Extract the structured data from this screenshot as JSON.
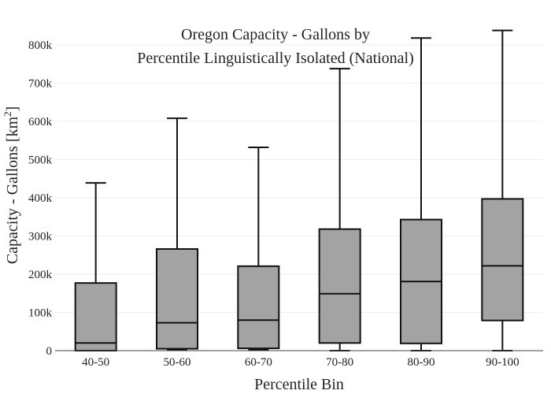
{
  "chart_data": {
    "type": "box",
    "title_lines": [
      "Oregon Capacity - Gallons by",
      "Percentile Linguistically Isolated (National)"
    ],
    "xlabel": "Percentile Bin",
    "ylabel": "Capacity - Gallons",
    "ylabel_unit_base": " [km",
    "ylabel_unit_sup": "2",
    "ylabel_unit_end": "]",
    "ylim": [
      0,
      850000
    ],
    "yticks": [
      {
        "value": 0,
        "label": "0"
      },
      {
        "value": 100000,
        "label": "100k"
      },
      {
        "value": 200000,
        "label": "200k"
      },
      {
        "value": 300000,
        "label": "300k"
      },
      {
        "value": 400000,
        "label": "400k"
      },
      {
        "value": 500000,
        "label": "500k"
      },
      {
        "value": 600000,
        "label": "600k"
      },
      {
        "value": 700000,
        "label": "700k"
      },
      {
        "value": 800000,
        "label": "800k"
      }
    ],
    "categories": [
      "40-50",
      "50-60",
      "60-70",
      "70-80",
      "80-90",
      "90-100"
    ],
    "boxes": [
      {
        "category": "40-50",
        "min": 0,
        "q1": 0,
        "median": 20000,
        "q3": 177000,
        "max": 439000
      },
      {
        "category": "50-60",
        "min": 3000,
        "q1": 5000,
        "median": 73000,
        "q3": 266000,
        "max": 608000
      },
      {
        "category": "60-70",
        "min": 3000,
        "q1": 6000,
        "median": 80000,
        "q3": 221000,
        "max": 532000
      },
      {
        "category": "70-80",
        "min": 0,
        "q1": 20000,
        "median": 149000,
        "q3": 318000,
        "max": 738000
      },
      {
        "category": "80-90",
        "min": 0,
        "q1": 19000,
        "median": 181000,
        "q3": 343000,
        "max": 818000
      },
      {
        "category": "90-100",
        "min": 0,
        "q1": 79000,
        "median": 222000,
        "q3": 397000,
        "max": 838000
      }
    ],
    "box_fill": "#a3a3a3",
    "line_color": "#111111",
    "grid": true,
    "grid_color": "#eeeeee"
  }
}
